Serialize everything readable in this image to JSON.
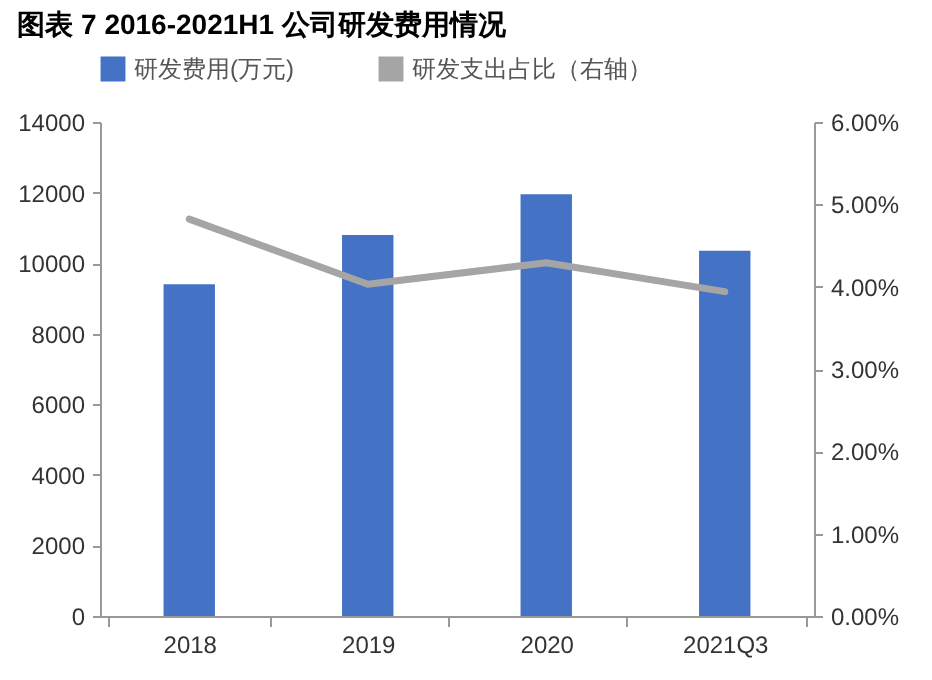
{
  "chart_data": {
    "type": "bar",
    "title": "图表 7 2016-2021H1 公司研发费用情况",
    "categories": [
      "2018",
      "2019",
      "2020",
      "2021Q3"
    ],
    "series": [
      {
        "name": "研发费用(万元)",
        "color": "#4472c4",
        "values": [
          9400,
          10800,
          11950,
          10350
        ]
      },
      {
        "name": "研发支出占比（右轴）",
        "type": "line",
        "axis": "y2",
        "color": "#a5a5a5",
        "values": [
          4.82,
          4.03,
          4.29,
          3.94
        ]
      }
    ],
    "ylim": [
      0,
      14000
    ],
    "yticks": [
      0,
      2000,
      4000,
      6000,
      8000,
      10000,
      12000,
      14000
    ],
    "y2lim": [
      0,
      6
    ],
    "y2ticks": [
      {
        "value": 0,
        "label": "0.00%"
      },
      {
        "value": 1,
        "label": "1.00%"
      },
      {
        "value": 2,
        "label": "2.00%"
      },
      {
        "value": 3,
        "label": "3.00%"
      },
      {
        "value": 4,
        "label": "4.00%"
      },
      {
        "value": 5,
        "label": "5.00%"
      },
      {
        "value": 6,
        "label": "6.00%"
      }
    ],
    "legend": "top"
  }
}
